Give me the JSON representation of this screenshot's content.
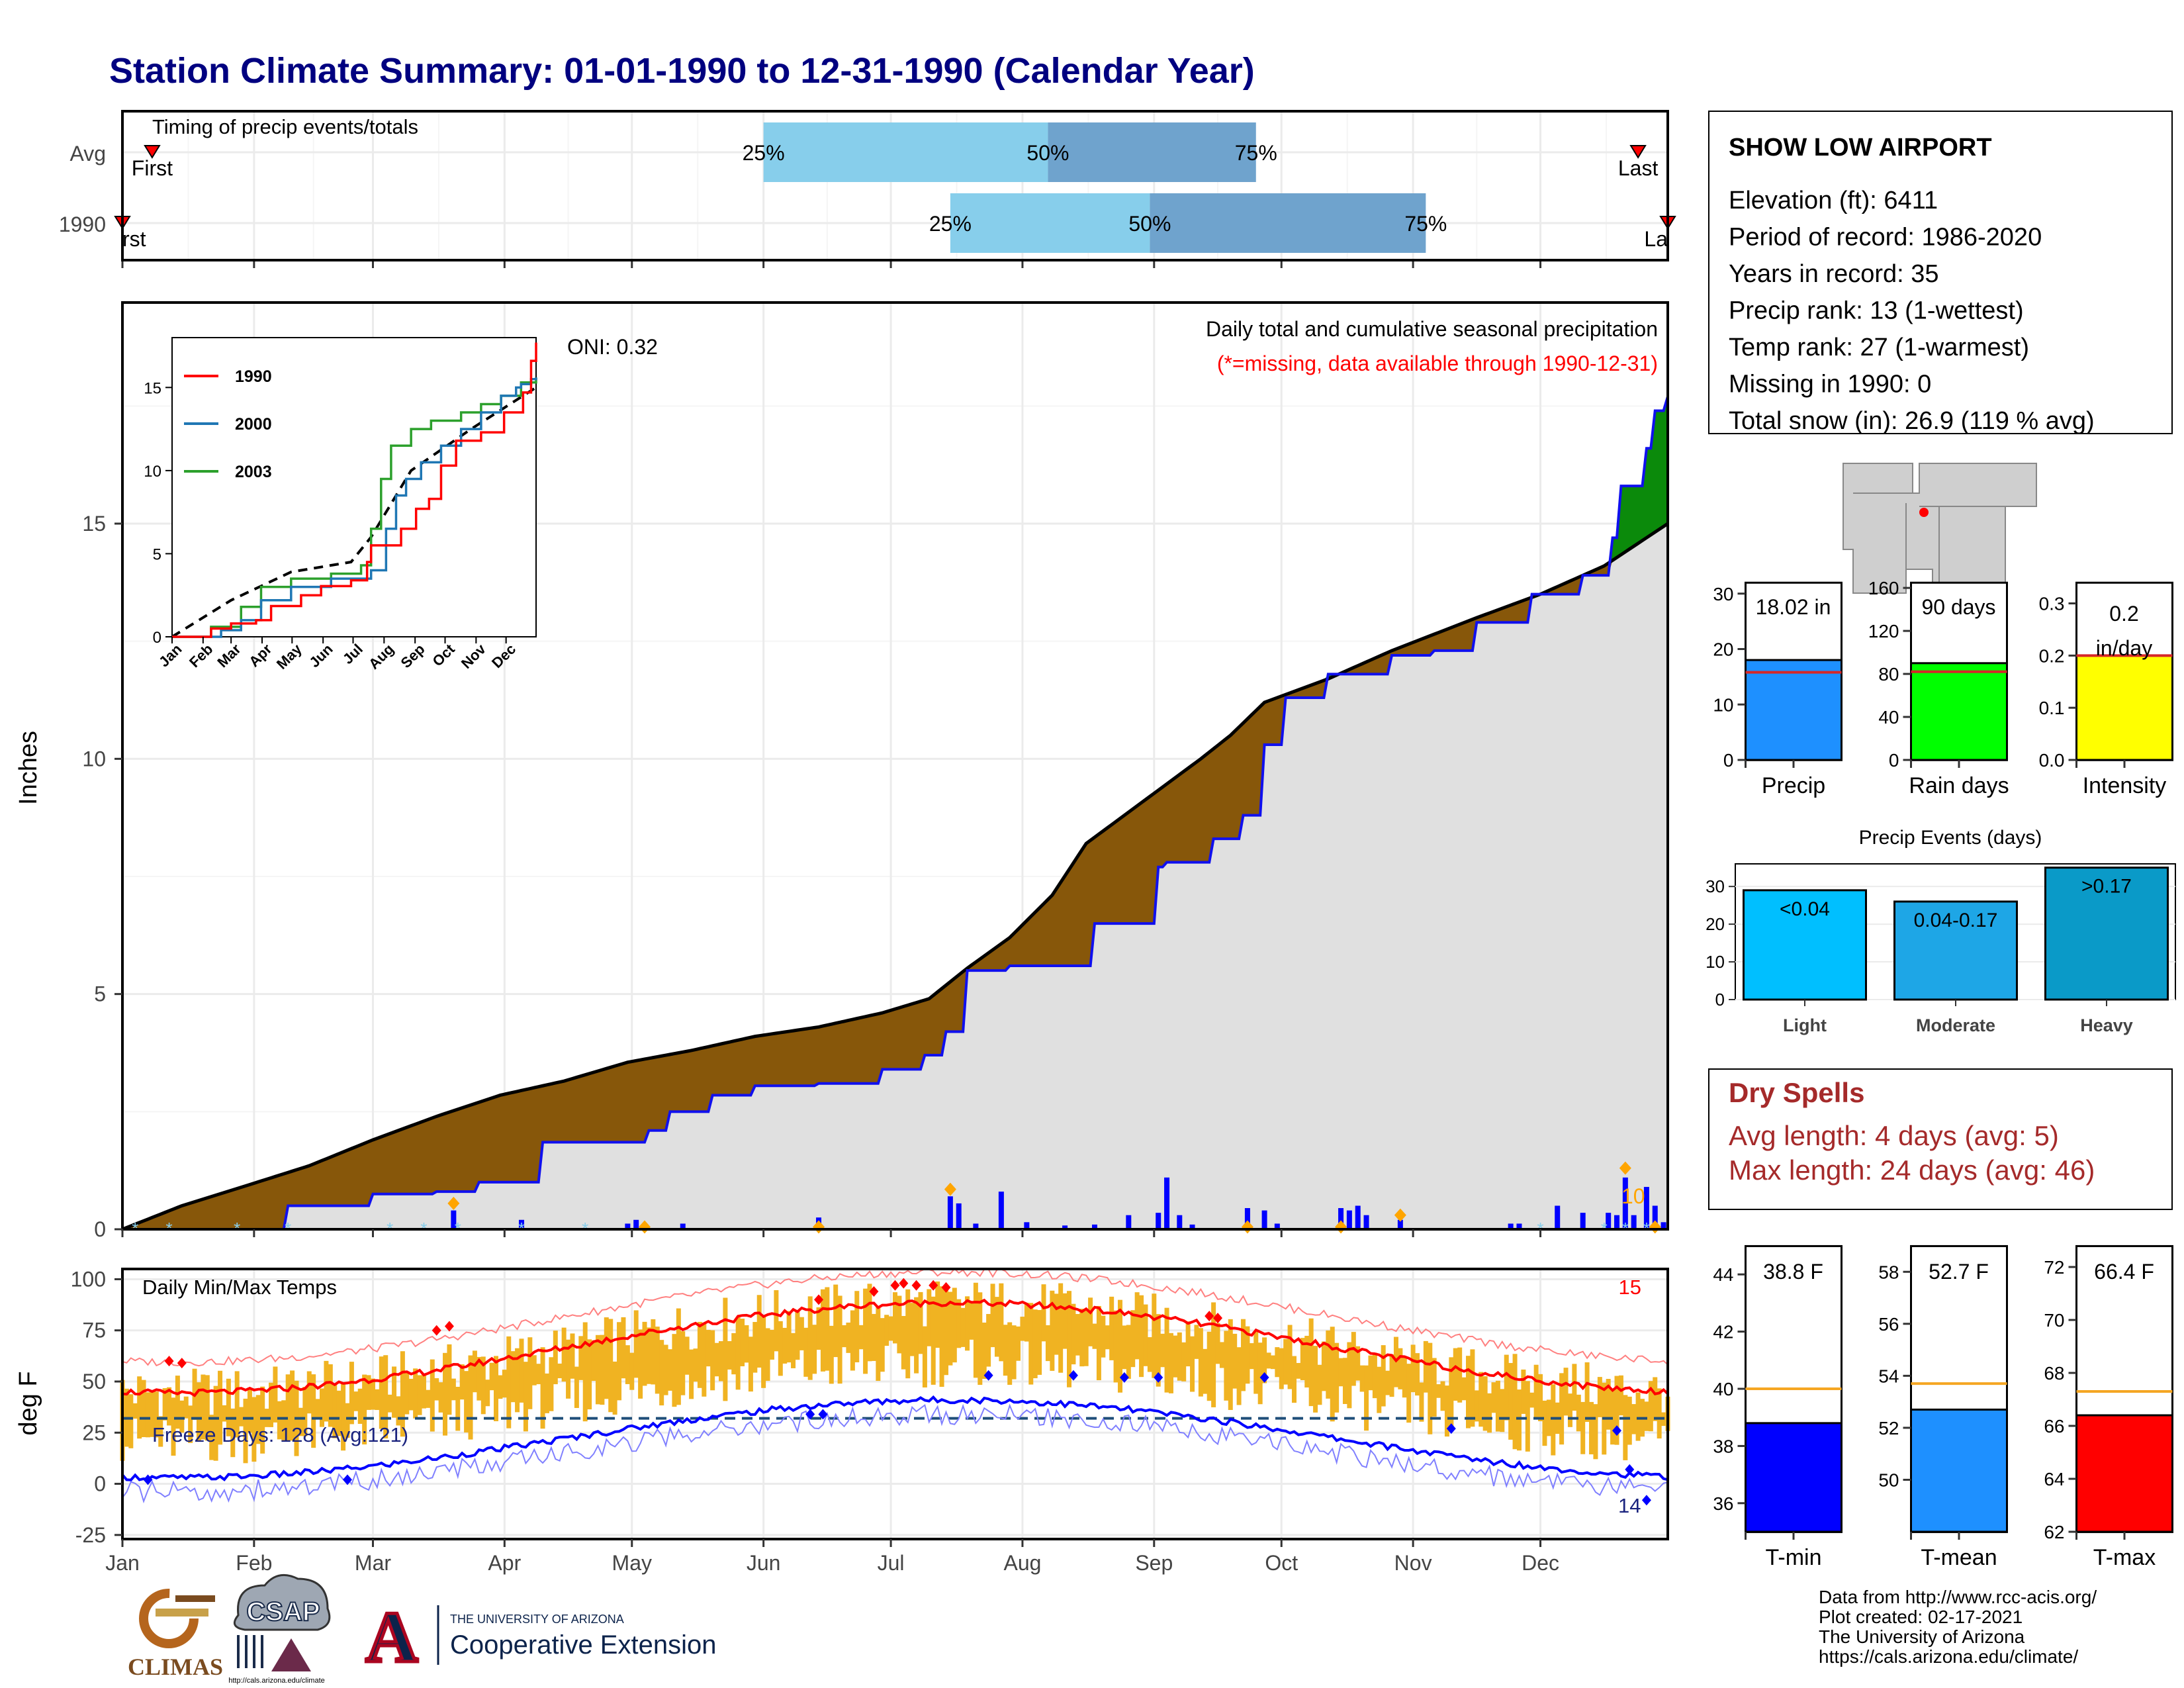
{
  "title": "Station Climate Summary: 01-01-1990 to 12-31-1990 (Calendar Year)",
  "colors": {
    "title": "#000080",
    "light_blue": "#87ceeb",
    "mid_blue": "#6fa3cd",
    "brown": "#87570a",
    "green": "#0b8a0b",
    "grey": "#e0e0e0",
    "precip_bar": "#1e90ff",
    "rain_bar": "#00ff00",
    "intensity_bar": "#ffff00",
    "light_ev": "#00bfff",
    "mod_ev": "#1ea6e6",
    "heavy_ev": "#0a9ac8",
    "tmin": "#0000ff",
    "tmean": "#1e90ff",
    "tmax": "#ff0000",
    "dry": "#a52a2a",
    "temp_bar": "#f0b322"
  },
  "timing": {
    "label": "Timing of precip events/totals",
    "rows": [
      {
        "name": "Avg",
        "first_label": "First",
        "last_label": "Last",
        "q25_label": "25%",
        "q50_label": "50%",
        "q75_label": "75%",
        "first_doy": 8,
        "last_doy": 358,
        "q25_doy": 152,
        "q50_doy": 219,
        "q75_doy": 268
      },
      {
        "name": "1990",
        "first_label": "rst",
        "last_label": "La",
        "q25_label": "25%",
        "q50_label": "50%",
        "q75_label": "75%",
        "first_doy": 1,
        "last_doy": 365,
        "q25_doy": 196,
        "q50_doy": 243,
        "q75_doy": 308
      }
    ]
  },
  "station": {
    "name": "SHOW LOW AIRPORT",
    "lines": [
      "Elevation (ft): 6411",
      "Period of record: 1986-2020",
      "Years in record: 35",
      "Precip rank: 13 (1-wettest)",
      "Temp rank: 27 (1-warmest)",
      "Missing in 1990: 0",
      "Total snow (in): 26.9 (119 % avg)"
    ]
  },
  "precip": {
    "label": "Daily total and cumulative seasonal precipitation",
    "missing_note": "(*=missing, data available through 1990-12-31)",
    "oni": "ONI: 0.32",
    "ylabel": "Inches",
    "yticks": [
      "0",
      "5",
      "10",
      "15"
    ],
    "ylim": [
      0,
      19.7
    ],
    "snow_count": "10",
    "cum_avg": [
      [
        1,
        0
      ],
      [
        15,
        0.5
      ],
      [
        31,
        0.95
      ],
      [
        45,
        1.35
      ],
      [
        60,
        1.9
      ],
      [
        75,
        2.4
      ],
      [
        90,
        2.85
      ],
      [
        105,
        3.15
      ],
      [
        120,
        3.55
      ],
      [
        135,
        3.8
      ],
      [
        150,
        4.1
      ],
      [
        165,
        4.3
      ],
      [
        180,
        4.6
      ],
      [
        191,
        4.9
      ],
      [
        200,
        5.55
      ],
      [
        210,
        6.2
      ],
      [
        220,
        7.1
      ],
      [
        228,
        8.2
      ],
      [
        240,
        9.0
      ],
      [
        255,
        10.0
      ],
      [
        262,
        10.5
      ],
      [
        270,
        11.2
      ],
      [
        285,
        11.7
      ],
      [
        300,
        12.3
      ],
      [
        320,
        13.0
      ],
      [
        335,
        13.5
      ],
      [
        350,
        14.1
      ],
      [
        365,
        15.0
      ]
    ],
    "cum_obs": [
      [
        1,
        0
      ],
      [
        20,
        0
      ],
      [
        40,
        0.5
      ],
      [
        60,
        0.75
      ],
      [
        75,
        0.8
      ],
      [
        85,
        1.0
      ],
      [
        100,
        1.85
      ],
      [
        125,
        2.1
      ],
      [
        130,
        2.5
      ],
      [
        140,
        2.85
      ],
      [
        150,
        3.05
      ],
      [
        165,
        3.1
      ],
      [
        180,
        3.4
      ],
      [
        190,
        3.7
      ],
      [
        195,
        4.2
      ],
      [
        200,
        5.5
      ],
      [
        210,
        5.6
      ],
      [
        230,
        6.5
      ],
      [
        245,
        7.7
      ],
      [
        247,
        7.8
      ],
      [
        258,
        8.3
      ],
      [
        265,
        8.8
      ],
      [
        270,
        10.3
      ],
      [
        275,
        11.3
      ],
      [
        285,
        11.8
      ],
      [
        300,
        12.2
      ],
      [
        310,
        12.3
      ],
      [
        320,
        12.9
      ],
      [
        333,
        13.5
      ],
      [
        345,
        13.9
      ],
      [
        352,
        14.7
      ],
      [
        354,
        15.8
      ],
      [
        360,
        16.6
      ],
      [
        362,
        17.4
      ],
      [
        365,
        17.7
      ]
    ],
    "daily_bars": [
      [
        79,
        0.4
      ],
      [
        95,
        0.2
      ],
      [
        120,
        0.12
      ],
      [
        122,
        0.2
      ],
      [
        133,
        0.12
      ],
      [
        165,
        0.25
      ],
      [
        196,
        0.7
      ],
      [
        198,
        0.55
      ],
      [
        202,
        0.12
      ],
      [
        208,
        0.8
      ],
      [
        214,
        0.15
      ],
      [
        223,
        0.08
      ],
      [
        230,
        0.1
      ],
      [
        238,
        0.3
      ],
      [
        245,
        0.35
      ],
      [
        247,
        1.1
      ],
      [
        250,
        0.3
      ],
      [
        253,
        0.1
      ],
      [
        266,
        0.45
      ],
      [
        270,
        0.4
      ],
      [
        273,
        0.12
      ],
      [
        288,
        0.45
      ],
      [
        290,
        0.4
      ],
      [
        292,
        0.5
      ],
      [
        294,
        0.3
      ],
      [
        302,
        0.2
      ],
      [
        328,
        0.12
      ],
      [
        330,
        0.12
      ],
      [
        339,
        0.5
      ],
      [
        345,
        0.35
      ],
      [
        351,
        0.35
      ],
      [
        353,
        0.3
      ],
      [
        355,
        1.1
      ],
      [
        357,
        0.3
      ],
      [
        360,
        0.9
      ],
      [
        362,
        0.5
      ],
      [
        364,
        0.15
      ]
    ]
  },
  "inset": {
    "series": [
      {
        "name": "1990",
        "color": "#ff0000"
      },
      {
        "name": "2000",
        "color": "#1f77b4"
      },
      {
        "name": "2003",
        "color": "#2ca02c"
      }
    ],
    "months": [
      "Jan",
      "Feb",
      "Mar",
      "Apr",
      "May",
      "Jun",
      "Jul",
      "Aug",
      "Sep",
      "Oct",
      "Nov",
      "Dec"
    ],
    "yticks": [
      "0",
      "5",
      "10",
      "15"
    ],
    "ylim": [
      0,
      18
    ],
    "avg": [
      [
        1,
        0
      ],
      [
        60,
        2.2
      ],
      [
        120,
        3.9
      ],
      [
        180,
        4.5
      ],
      [
        200,
        6.0
      ],
      [
        240,
        10.0
      ],
      [
        300,
        12.5
      ],
      [
        365,
        15.0
      ]
    ],
    "y1990": [
      [
        1,
        0
      ],
      [
        40,
        0.5
      ],
      [
        60,
        0.8
      ],
      [
        85,
        1.0
      ],
      [
        100,
        1.85
      ],
      [
        130,
        2.5
      ],
      [
        150,
        3.05
      ],
      [
        180,
        3.4
      ],
      [
        196,
        4.5
      ],
      [
        200,
        5.5
      ],
      [
        230,
        6.5
      ],
      [
        245,
        7.7
      ],
      [
        258,
        8.3
      ],
      [
        270,
        10.3
      ],
      [
        285,
        11.8
      ],
      [
        310,
        12.3
      ],
      [
        333,
        13.5
      ],
      [
        352,
        14.7
      ],
      [
        360,
        16.6
      ],
      [
        365,
        17.7
      ]
    ],
    "y2000": [
      [
        1,
        0
      ],
      [
        50,
        0.4
      ],
      [
        70,
        1.0
      ],
      [
        90,
        2.2
      ],
      [
        120,
        3.0
      ],
      [
        160,
        3.5
      ],
      [
        200,
        4.0
      ],
      [
        215,
        6.5
      ],
      [
        225,
        8.5
      ],
      [
        235,
        9.5
      ],
      [
        250,
        10.5
      ],
      [
        270,
        11.5
      ],
      [
        290,
        12.5
      ],
      [
        310,
        13.5
      ],
      [
        330,
        14.5
      ],
      [
        345,
        15.0
      ],
      [
        350,
        15.2
      ],
      [
        360,
        15.5
      ],
      [
        365,
        15.6
      ]
    ],
    "y2003": [
      [
        1,
        0
      ],
      [
        40,
        0.6
      ],
      [
        70,
        1.8
      ],
      [
        90,
        3.0
      ],
      [
        120,
        3.5
      ],
      [
        160,
        3.8
      ],
      [
        190,
        4.3
      ],
      [
        200,
        6.5
      ],
      [
        210,
        9.5
      ],
      [
        220,
        11.5
      ],
      [
        240,
        12.5
      ],
      [
        260,
        13.0
      ],
      [
        290,
        13.5
      ],
      [
        310,
        14.0
      ],
      [
        330,
        14.5
      ],
      [
        350,
        15.3
      ],
      [
        365,
        15.6
      ]
    ]
  },
  "small_charts": {
    "precip": {
      "value_label": "18.02 in",
      "axis_label": "Precip",
      "value": 18.02,
      "avg": 15.8,
      "ylim": [
        0,
        32
      ],
      "yticks": [
        "0",
        "10",
        "20",
        "30"
      ]
    },
    "rain": {
      "value_label": "90 days",
      "axis_label": "Rain days",
      "value": 90,
      "avg": 82,
      "ylim": [
        0,
        165
      ],
      "yticks": [
        "0",
        "40",
        "80",
        "120",
        "160"
      ]
    },
    "intensity": {
      "value_label_1": "0.2",
      "value_label_2": "in/day",
      "axis_label": "Intensity",
      "value": 0.2,
      "avg": 0.2,
      "ylim": [
        0,
        0.34
      ],
      "yticks": [
        "0.0",
        "0.1",
        "0.2",
        "0.3"
      ]
    }
  },
  "events": {
    "title": "Precip Events (days)",
    "yticks": [
      "0",
      "10",
      "20",
      "30"
    ],
    "ylim": [
      0,
      36
    ],
    "bars": [
      {
        "category": "Light",
        "label": "<0.04",
        "value": 29
      },
      {
        "category": "Moderate",
        "label": "0.04-0.17",
        "value": 26
      },
      {
        "category": "Heavy",
        "label": ">0.17",
        "value": 35
      }
    ]
  },
  "dry_spells": {
    "title": "Dry Spells",
    "avg_line": "Avg length: 4 days (avg: 5)",
    "max_line": "Max length: 24 days (avg: 46)"
  },
  "temps": {
    "label": "Daily Min/Max Temps",
    "freeze_label": "Freeze Days: 128 (Avg:121)",
    "hot_count": "15",
    "cold_count": "14",
    "ylabel": "deg F",
    "yticks": [
      "-25",
      "0",
      "25",
      "50",
      "75",
      "100"
    ],
    "ylim": [
      -27,
      105
    ],
    "freeze_line": 32
  },
  "month_axis": [
    "Jan",
    "Feb",
    "Mar",
    "Apr",
    "May",
    "Jun",
    "Jul",
    "Aug",
    "Sep",
    "Oct",
    "Nov",
    "Dec"
  ],
  "temp_summary": {
    "tmin": {
      "value_label": "38.8 F",
      "axis_label": "T-min",
      "value": 38.8,
      "avg": 40.0,
      "ylim": [
        35,
        45
      ],
      "yticks": [
        "36",
        "38",
        "40",
        "42",
        "44"
      ]
    },
    "tmean": {
      "value_label": "52.7 F",
      "axis_label": "T-mean",
      "value": 52.7,
      "avg": 53.7,
      "ylim": [
        48,
        59
      ],
      "yticks": [
        "50",
        "52",
        "54",
        "56",
        "58"
      ]
    },
    "tmax": {
      "value_label": "66.4 F",
      "axis_label": "T-max",
      "value": 66.4,
      "avg": 67.3,
      "ylim": [
        62,
        72.8
      ],
      "yticks": [
        "62",
        "64",
        "66",
        "68",
        "70",
        "72"
      ]
    }
  },
  "credits": {
    "lines": [
      "Data from http://www.rcc-acis.org/",
      "Plot created: 02-17-2021",
      "The University of Arizona",
      "https://cals.arizona.edu/climate/"
    ]
  },
  "logos": {
    "climas": "CLIMAS",
    "csap": "CSAP",
    "csap_url": "http://cals.arizona.edu/climate",
    "ua_letter": "A",
    "ua_top": "THE UNIVERSITY OF ARIZONA",
    "ua_bottom": "Cooperative Extension"
  }
}
